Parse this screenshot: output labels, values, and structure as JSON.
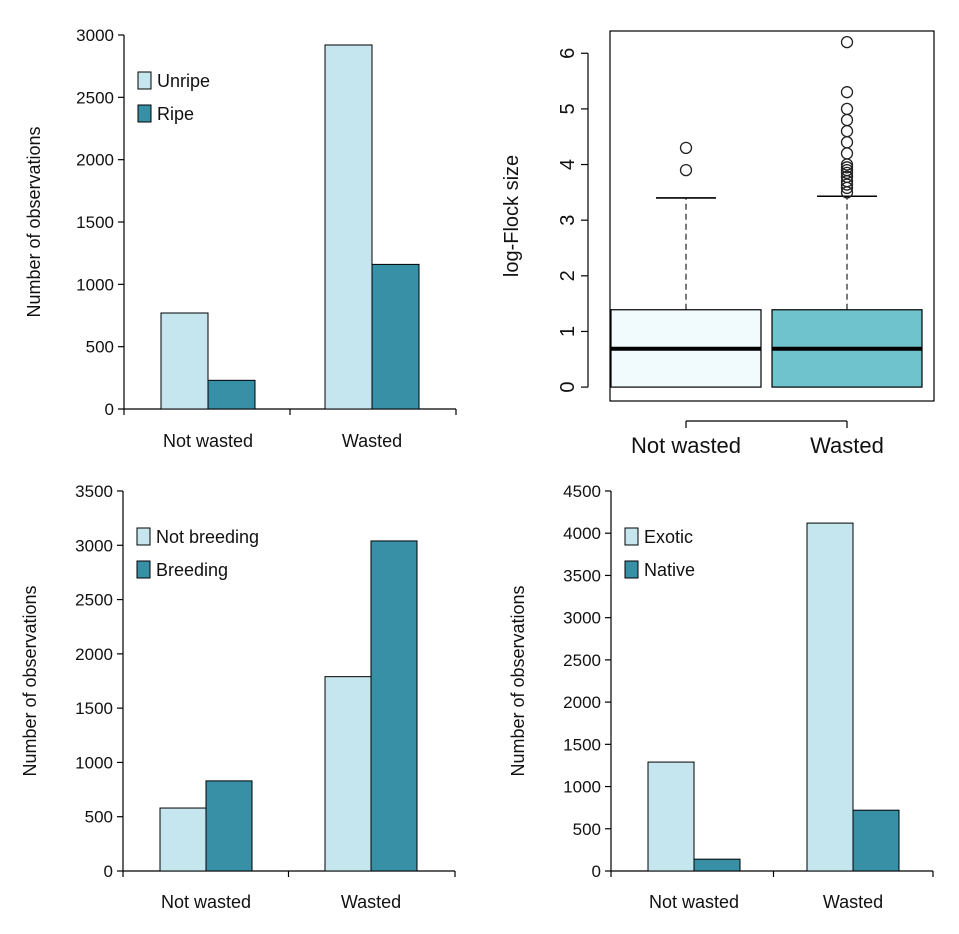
{
  "colors": {
    "light": "#c6e6ef",
    "dark": "#3890a7",
    "box_not_wasted": "#f1fbfd",
    "box_wasted": "#6fc3cc"
  },
  "chart_data": [
    {
      "id": "ripeness",
      "type": "bar",
      "categories": [
        "Not wasted",
        "Wasted"
      ],
      "series": [
        {
          "name": "Unripe",
          "values": [
            770,
            2920
          ]
        },
        {
          "name": "Ripe",
          "values": [
            230,
            1160
          ]
        }
      ],
      "ylabel": "Number of observations",
      "xlabel": "",
      "ylim": [
        0,
        3000
      ],
      "yticks": [
        0,
        500,
        1000,
        1500,
        2000,
        2500,
        3000
      ],
      "legend": "top-left"
    },
    {
      "id": "flock",
      "type": "box",
      "categories": [
        "Not wasted",
        "Wasted"
      ],
      "ylabel": "log-Flock size",
      "ylim": [
        -0.25,
        6.4
      ],
      "yticks": [
        0,
        1,
        2,
        3,
        4,
        5,
        6
      ],
      "boxes": [
        {
          "name": "Not wasted",
          "q1": 0,
          "median": 0.69,
          "q3": 1.39,
          "whisker_low": 0,
          "whisker_high": 3.4,
          "outliers": [
            3.9,
            4.3
          ]
        },
        {
          "name": "Wasted",
          "q1": 0,
          "median": 0.69,
          "q3": 1.39,
          "whisker_low": 0,
          "whisker_high": 3.43,
          "outliers": [
            3.5,
            3.58,
            3.64,
            3.7,
            3.78,
            3.85,
            3.9,
            3.95,
            4.0,
            4.2,
            4.4,
            4.6,
            4.8,
            5.0,
            5.3,
            6.2
          ]
        }
      ]
    },
    {
      "id": "breeding",
      "type": "bar",
      "categories": [
        "Not wasted",
        "Wasted"
      ],
      "series": [
        {
          "name": "Not breeding",
          "values": [
            580,
            1790
          ]
        },
        {
          "name": "Breeding",
          "values": [
            830,
            3040
          ]
        }
      ],
      "ylabel": "Number of observations",
      "xlabel": "",
      "ylim": [
        0,
        3500
      ],
      "yticks": [
        0,
        500,
        1000,
        1500,
        2000,
        2500,
        3000,
        3500
      ],
      "legend": "top-left"
    },
    {
      "id": "origin",
      "type": "bar",
      "categories": [
        "Not wasted",
        "Wasted"
      ],
      "series": [
        {
          "name": "Exotic",
          "values": [
            1290,
            4120
          ]
        },
        {
          "name": "Native",
          "values": [
            140,
            720
          ]
        }
      ],
      "ylabel": "Number of observations",
      "xlabel": "",
      "ylim": [
        0,
        4500
      ],
      "yticks": [
        0,
        500,
        1000,
        1500,
        2000,
        2500,
        3000,
        3500,
        4000,
        4500
      ],
      "legend": "top-left"
    }
  ]
}
